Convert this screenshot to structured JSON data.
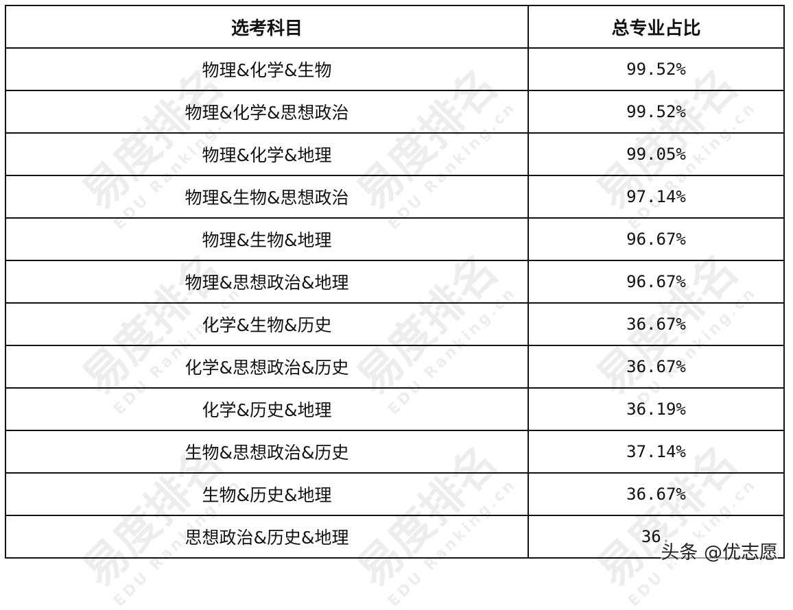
{
  "table": {
    "headers": [
      "选考科目",
      "总专业占比"
    ],
    "rows": [
      [
        "物理&化学&生物",
        "99.52%"
      ],
      [
        "物理&化学&思想政治",
        "99.52%"
      ],
      [
        "物理&化学&地理",
        "99.05%"
      ],
      [
        "物理&生物&思想政治",
        "97.14%"
      ],
      [
        "物理&生物&地理",
        "96.67%"
      ],
      [
        "物理&思想政治&地理",
        "96.67%"
      ],
      [
        "化学&生物&历史",
        "36.67%"
      ],
      [
        "化学&思想政治&历史",
        "36.67%"
      ],
      [
        "化学&历史&地理",
        "36.19%"
      ],
      [
        "生物&思想政治&历史",
        "37.14%"
      ],
      [
        "生物&历史&地理",
        "36.67%"
      ],
      [
        "思想政治&历史&地理",
        "36."
      ]
    ]
  },
  "watermark": {
    "text": "易度排名",
    "sub": "EDU Ranking.cn"
  },
  "credit": "头条 @优志愿"
}
